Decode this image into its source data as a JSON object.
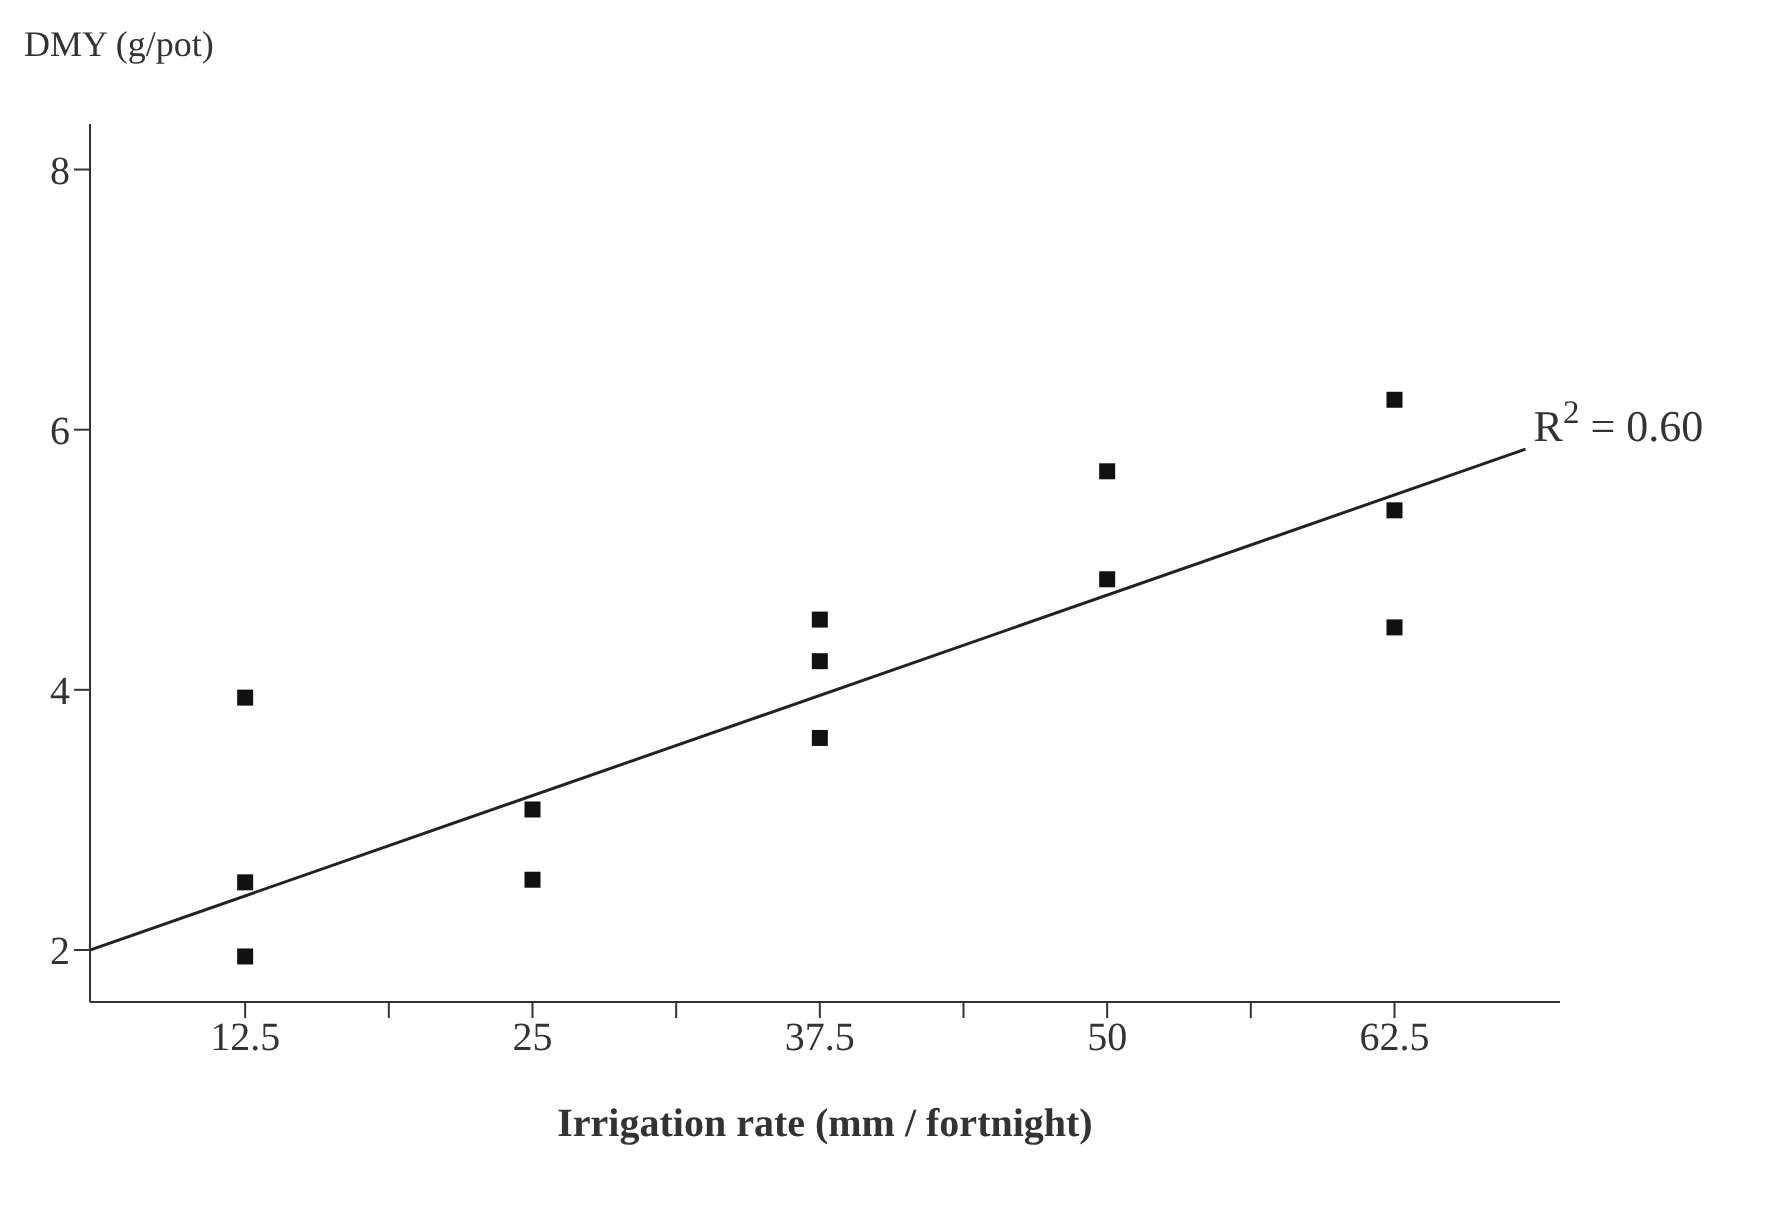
{
  "chart_data": {
    "type": "scatter",
    "xlabel": "Irrigation rate (mm / fortnight)",
    "ylabel": "DMY (g/pot)",
    "xlim": [
      5.75,
      69.7
    ],
    "xticks": [
      12.5,
      {
        "value": 18.75,
        "label": null
      },
      25,
      {
        "value": 31.25,
        "label": null
      },
      37.5,
      {
        "value": 43.75,
        "label": null
      },
      50,
      {
        "value": 56.25,
        "label": null
      },
      62.5
    ],
    "ylim": [
      1.6,
      8.35
    ],
    "yticks": [
      2,
      4,
      6,
      8
    ],
    "line_style": "solid",
    "series": [
      {
        "marker": "square",
        "color": "#111111",
        "x": [
          12.5,
          12.5,
          12.5,
          25,
          25,
          37.5,
          37.5,
          37.5,
          50,
          50,
          62.5,
          62.5,
          62.5
        ],
        "values": [
          3.94,
          2.52,
          1.95,
          3.08,
          2.54,
          4.54,
          4.22,
          3.63,
          5.68,
          4.85,
          6.23,
          5.38,
          4.48
        ]
      },
      {
        "type": "line",
        "marker": "none",
        "color": "#222222",
        "x": [
          5.75,
          68.2
        ],
        "values": [
          2.0,
          5.85
        ]
      }
    ],
    "annotations": [
      {
        "text": "R$^{2}$ = 0.60",
        "x": 68.2,
        "y": 5.85
      }
    ]
  }
}
